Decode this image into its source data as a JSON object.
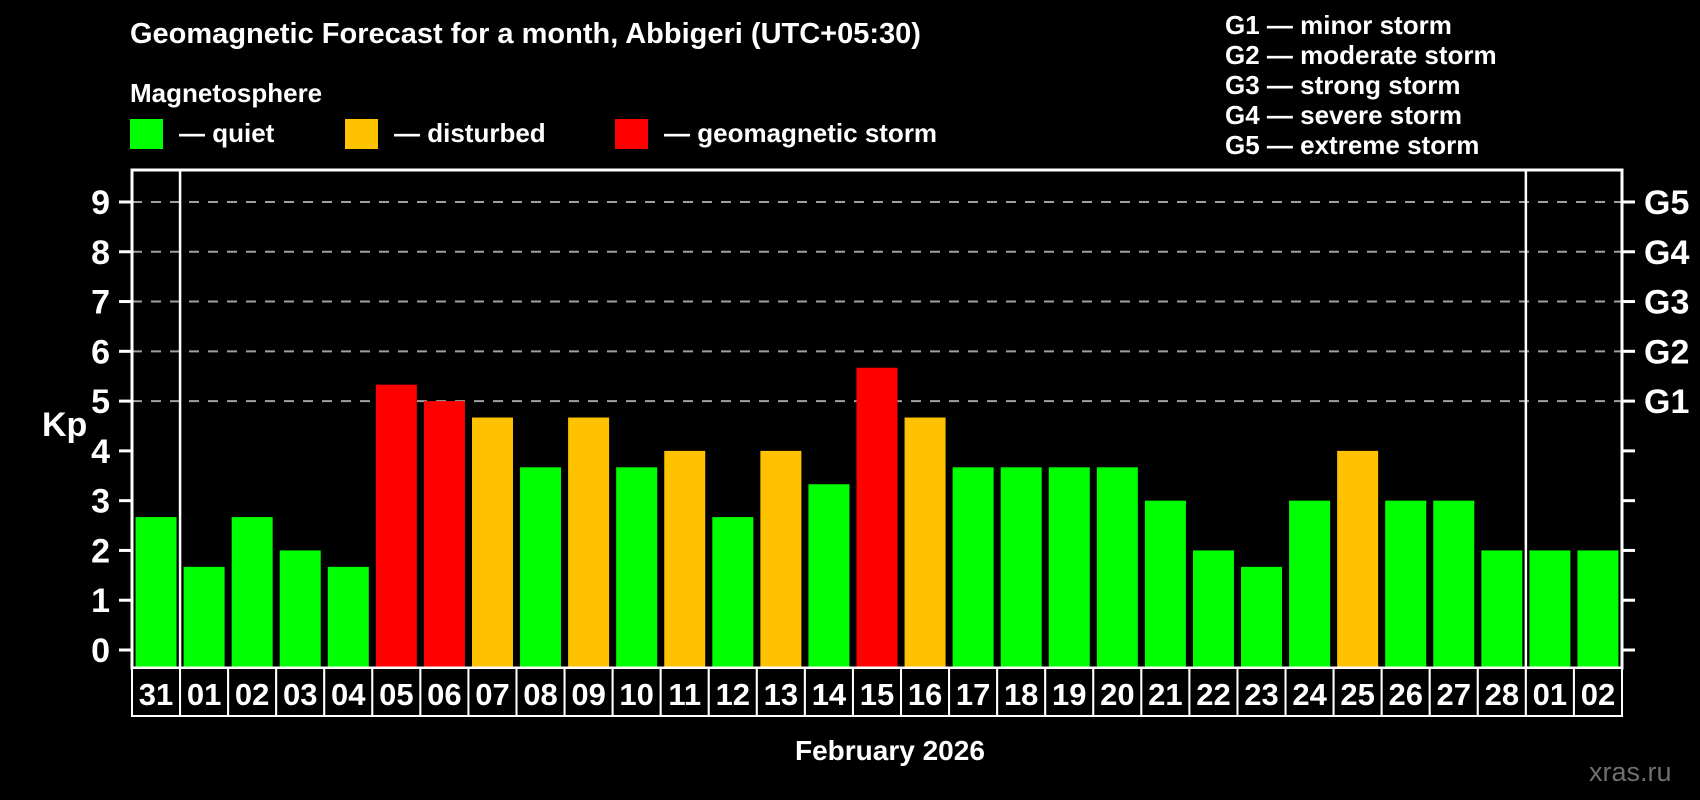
{
  "header": {
    "title": "Geomagnetic Forecast for a month, Abbigeri (UTC+05:30)",
    "subtitle": "Magnetosphere"
  },
  "kp_legend": {
    "items": [
      {
        "key": "quiet",
        "label": "— quiet"
      },
      {
        "key": "disturbed",
        "label": "— disturbed"
      },
      {
        "key": "storm",
        "label": "— geomagnetic storm"
      }
    ]
  },
  "g_legend": {
    "items": [
      "G1 — minor storm",
      "G2 — moderate storm",
      "G3 — strong storm",
      "G4 — severe storm",
      "G5 — extreme storm"
    ]
  },
  "chart_data": {
    "type": "bar",
    "title": "Geomagnetic Forecast for a month, Abbigeri (UTC+05:30)",
    "subtitle": "Magnetosphere",
    "ylabel": "Kp",
    "xlabel": "February 2026",
    "ylim": [
      0,
      9
    ],
    "grid": "dashed horizontal gridlines at Kp 5,6,7,8,9 (G1–G5 levels)",
    "legend_position": "top",
    "categories": [
      "31",
      "01",
      "02",
      "03",
      "04",
      "05",
      "06",
      "07",
      "08",
      "09",
      "10",
      "11",
      "12",
      "13",
      "14",
      "15",
      "16",
      "17",
      "18",
      "19",
      "20",
      "21",
      "22",
      "23",
      "24",
      "25",
      "26",
      "27",
      "28",
      "01",
      "02"
    ],
    "values": [
      2.67,
      1.67,
      2.67,
      2.0,
      1.67,
      5.33,
      5.0,
      4.67,
      3.67,
      4.67,
      3.67,
      4.0,
      2.67,
      4.0,
      3.33,
      5.67,
      4.67,
      3.67,
      3.67,
      3.67,
      3.67,
      3.0,
      2.0,
      1.67,
      3.0,
      4.0,
      3.0,
      3.0,
      2.0,
      2.0,
      2.0
    ],
    "statuses": [
      "quiet",
      "quiet",
      "quiet",
      "quiet",
      "quiet",
      "storm",
      "storm",
      "disturbed",
      "quiet",
      "disturbed",
      "quiet",
      "disturbed",
      "quiet",
      "disturbed",
      "quiet",
      "storm",
      "disturbed",
      "quiet",
      "quiet",
      "quiet",
      "quiet",
      "quiet",
      "quiet",
      "quiet",
      "quiet",
      "disturbed",
      "quiet",
      "quiet",
      "quiet",
      "quiet",
      "quiet"
    ],
    "colors": {
      "quiet": "#00ff00",
      "disturbed": "#ffc200",
      "storm": "#ff0000",
      "grid": "#a0a0a0",
      "axis": "#ffffff",
      "background": "#000000",
      "watermark": "#6f6f6f"
    },
    "kp_ticks": [
      "0",
      "1",
      "2",
      "3",
      "4",
      "5",
      "6",
      "7",
      "8",
      "9"
    ],
    "right_axis_labels": [
      {
        "value": 5,
        "label": "G1"
      },
      {
        "value": 6,
        "label": "G2"
      },
      {
        "value": 7,
        "label": "G3"
      },
      {
        "value": 8,
        "label": "G4"
      },
      {
        "value": 9,
        "label": "G5"
      }
    ],
    "month_separator_after_indices": [
      0,
      28
    ]
  },
  "footer": {
    "month_label": "February 2026",
    "watermark": "xras.ru"
  }
}
